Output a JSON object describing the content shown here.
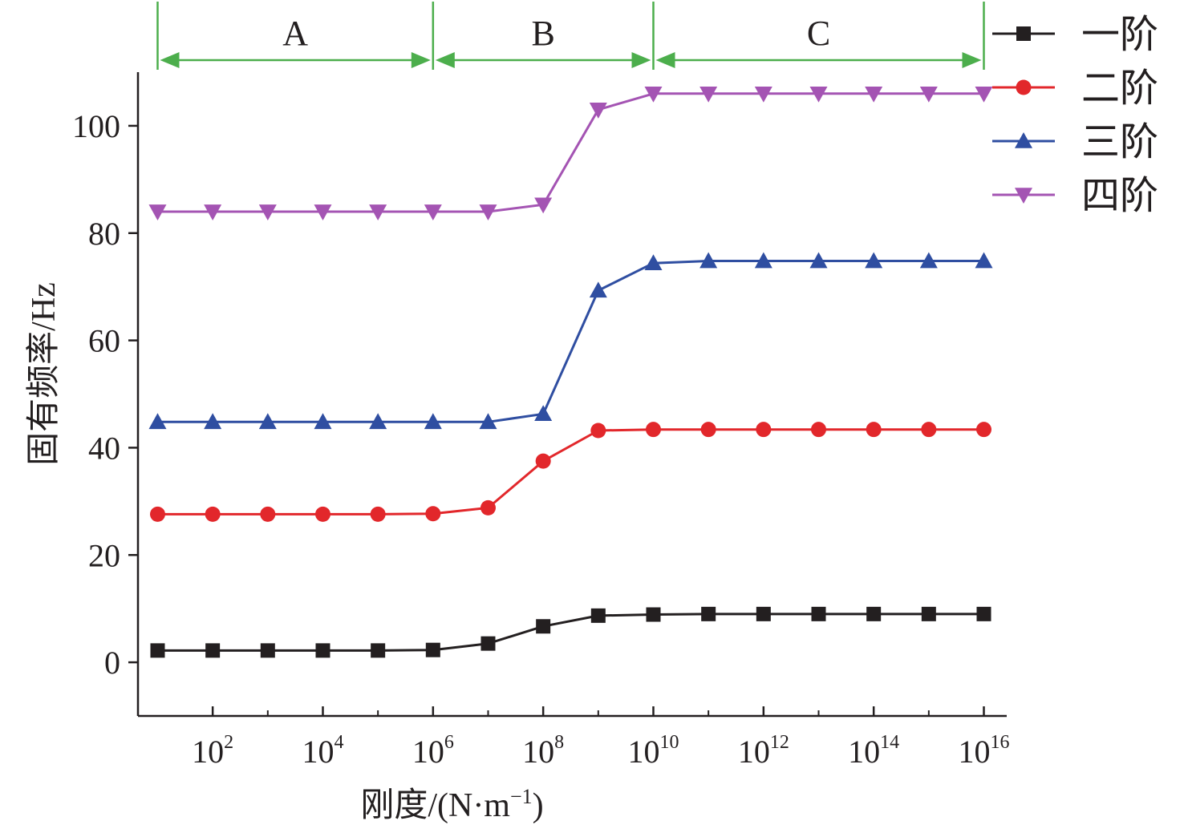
{
  "chart_data": {
    "type": "line",
    "xscale": "log10",
    "x": [
      10,
      100,
      1000,
      10000,
      100000,
      1000000,
      10000000,
      100000000,
      1000000000,
      10000000000,
      100000000000,
      1000000000000,
      10000000000000,
      100000000000000,
      1000000000000000,
      10000000000000000
    ],
    "xlim": [
      4.4,
      26000000000000000
    ],
    "ylim": [
      -10,
      110
    ],
    "xlabel": "刚度/(N·m",
    "xlabel_sup": "−1",
    "xlabel_tail": ")",
    "ylabel": "固有频率/Hz",
    "x_ticks": [
      {
        "value": 100,
        "base": "10",
        "exp": "2"
      },
      {
        "value": 10000,
        "base": "10",
        "exp": "4"
      },
      {
        "value": 1000000,
        "base": "10",
        "exp": "6"
      },
      {
        "value": 100000000,
        "base": "10",
        "exp": "8"
      },
      {
        "value": 10000000000,
        "base": "10",
        "exp": "10"
      },
      {
        "value": 1000000000000,
        "base": "10",
        "exp": "12"
      },
      {
        "value": 100000000000000,
        "base": "10",
        "exp": "14"
      },
      {
        "value": 10000000000000000,
        "base": "10",
        "exp": "16"
      }
    ],
    "x_minor_ticks": [
      1000,
      100000,
      10000000,
      1000000000,
      100000000000,
      10000000000000,
      1000000000000000
    ],
    "y_ticks": [
      0,
      20,
      40,
      60,
      80,
      100
    ],
    "y_tick_labels": [
      "0",
      "20",
      "40",
      "60",
      "80",
      "100"
    ],
    "series": [
      {
        "name": "一阶",
        "color": "#231f20",
        "marker": "square",
        "values": [
          2.2,
          2.2,
          2.2,
          2.2,
          2.2,
          2.3,
          3.5,
          6.7,
          8.7,
          8.9,
          9.0,
          9.0,
          9.0,
          9.0,
          9.0,
          9.0
        ]
      },
      {
        "name": "二阶",
        "color": "#e2272b",
        "marker": "circle",
        "values": [
          27.6,
          27.6,
          27.6,
          27.6,
          27.6,
          27.7,
          28.8,
          37.5,
          43.2,
          43.4,
          43.4,
          43.4,
          43.4,
          43.4,
          43.4,
          43.4
        ]
      },
      {
        "name": "三阶",
        "color": "#2f4ea1",
        "marker": "triangle-up",
        "values": [
          44.8,
          44.8,
          44.8,
          44.8,
          44.8,
          44.8,
          44.8,
          46.3,
          69.3,
          74.4,
          74.8,
          74.8,
          74.8,
          74.8,
          74.8,
          74.8
        ]
      },
      {
        "name": "四阶",
        "color": "#a454b3",
        "marker": "triangle-down",
        "values": [
          84.0,
          84.0,
          84.0,
          84.0,
          84.0,
          84.0,
          84.0,
          85.3,
          103.0,
          106.0,
          106.0,
          106.0,
          106.0,
          106.0,
          106.0,
          106.0
        ]
      }
    ],
    "regions": [
      {
        "label": "A",
        "from": 10,
        "to": 1000000
      },
      {
        "label": "B",
        "from": 1000000,
        "to": 10000000000
      },
      {
        "label": "C",
        "from": 10000000000,
        "to": 10000000000000000
      }
    ],
    "region_color": "#4cae4c",
    "legend_position": "top-right",
    "grid": false
  }
}
